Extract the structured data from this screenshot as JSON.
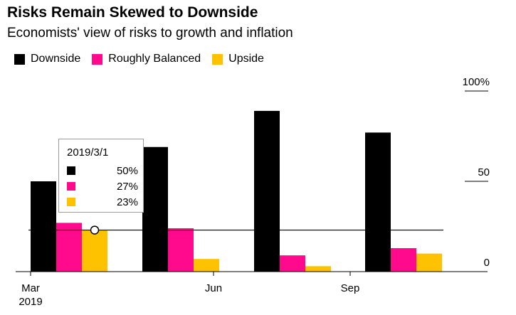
{
  "title": "Risks Remain Skewed to Downside",
  "subtitle": "Economists' view of risks to growth and inflation",
  "legend": [
    {
      "label": "Downside",
      "color": "#000000"
    },
    {
      "label": "Roughly Balanced",
      "color": "#ff0a8c"
    },
    {
      "label": "Upside",
      "color": "#ffc200"
    }
  ],
  "tooltip": {
    "date": "2019/3/1",
    "rows": [
      {
        "value": "50%",
        "color": "#000000"
      },
      {
        "value": "27%",
        "color": "#ff0a8c"
      },
      {
        "value": "23%",
        "color": "#ffc200"
      }
    ]
  },
  "chart_data": {
    "type": "bar",
    "title": "Risks Remain Skewed to Downside",
    "subtitle": "Economists' view of risks to growth and inflation",
    "categories": [
      "2019/3/1",
      "2019/5/1",
      "2019/7/1",
      "2019/9/1"
    ],
    "series": [
      {
        "name": "Downside",
        "color": "#000000",
        "values": [
          50,
          69,
          89,
          77
        ]
      },
      {
        "name": "Roughly Balanced",
        "color": "#ff0a8c",
        "values": [
          27,
          24,
          9,
          13
        ]
      },
      {
        "name": "Upside",
        "color": "#ffc200",
        "values": [
          23,
          7,
          3,
          10
        ]
      }
    ],
    "ylim": [
      0,
      100
    ],
    "yticks": [
      {
        "value": 100,
        "label": "100%"
      },
      {
        "value": 50,
        "label": "50"
      },
      {
        "value": 0,
        "label": "0"
      }
    ],
    "xticks": [
      {
        "label": "Mar",
        "sublabel": "2019"
      },
      {
        "label": "Jun",
        "sublabel": ""
      },
      {
        "label": "Sep",
        "sublabel": ""
      }
    ],
    "reference_line": 23,
    "highlight": {
      "series": "Upside",
      "category": "2019/3/1"
    },
    "xlabel": "",
    "ylabel": ""
  }
}
